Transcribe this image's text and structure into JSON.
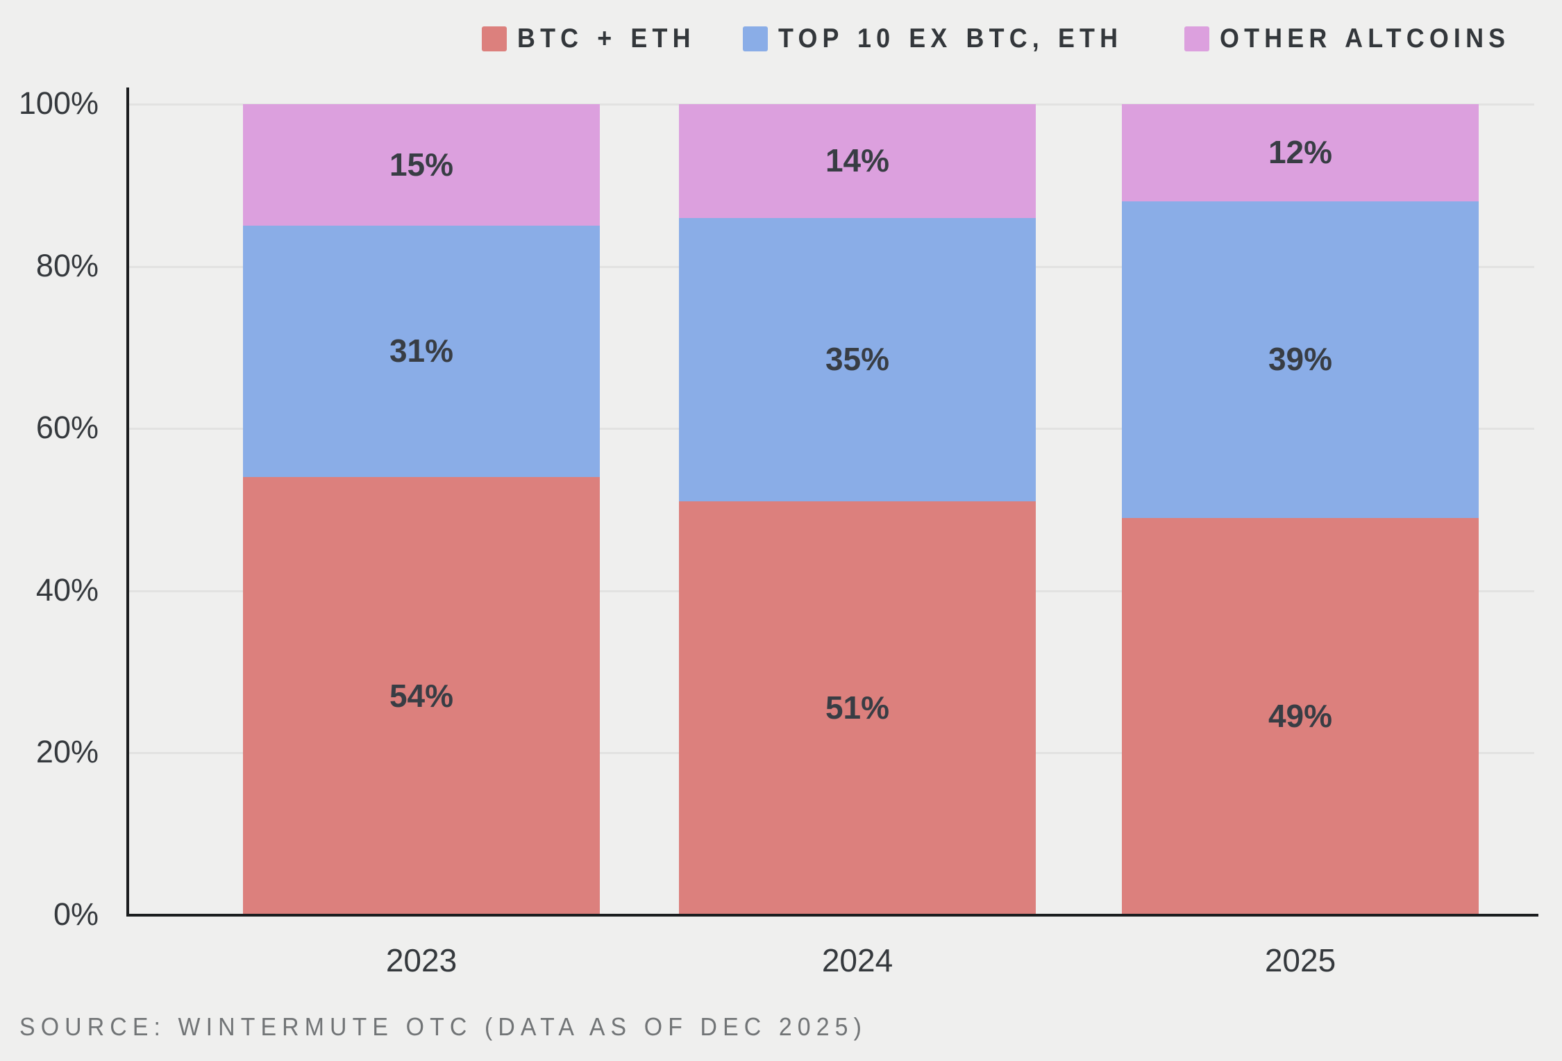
{
  "chart_data": {
    "type": "bar",
    "stacked": true,
    "orientation": "vertical",
    "categories": [
      "2023",
      "2024",
      "2025"
    ],
    "series": [
      {
        "name": "BTC + ETH",
        "color": "#DC807D",
        "values": [
          54,
          51,
          49
        ]
      },
      {
        "name": "TOP 10 EX BTC, ETH",
        "color": "#8AADE7",
        "values": [
          31,
          35,
          39
        ]
      },
      {
        "name": "OTHER ALTCOINS",
        "color": "#DCA0DE",
        "values": [
          15,
          14,
          12
        ]
      }
    ],
    "value_suffix": "%",
    "title": "",
    "xlabel": "",
    "ylabel": "",
    "ylim": [
      0,
      100
    ],
    "y_ticks": [
      "0%",
      "20%",
      "40%",
      "60%",
      "80%",
      "100%"
    ],
    "grid": true,
    "legend_position": "top-right",
    "data_labels": "inside-center"
  },
  "source_note": "SOURCE: WINTERMUTE OTC (DATA AS OF DEC 2025)",
  "colors": {
    "background": "#EFEFEE",
    "gridline": "#E2E2E1",
    "axis": "#1B1D1F",
    "data_label": "#383D44",
    "tick_label": "#35393D",
    "legend_text": "#33373B",
    "source_text": "#717476"
  }
}
